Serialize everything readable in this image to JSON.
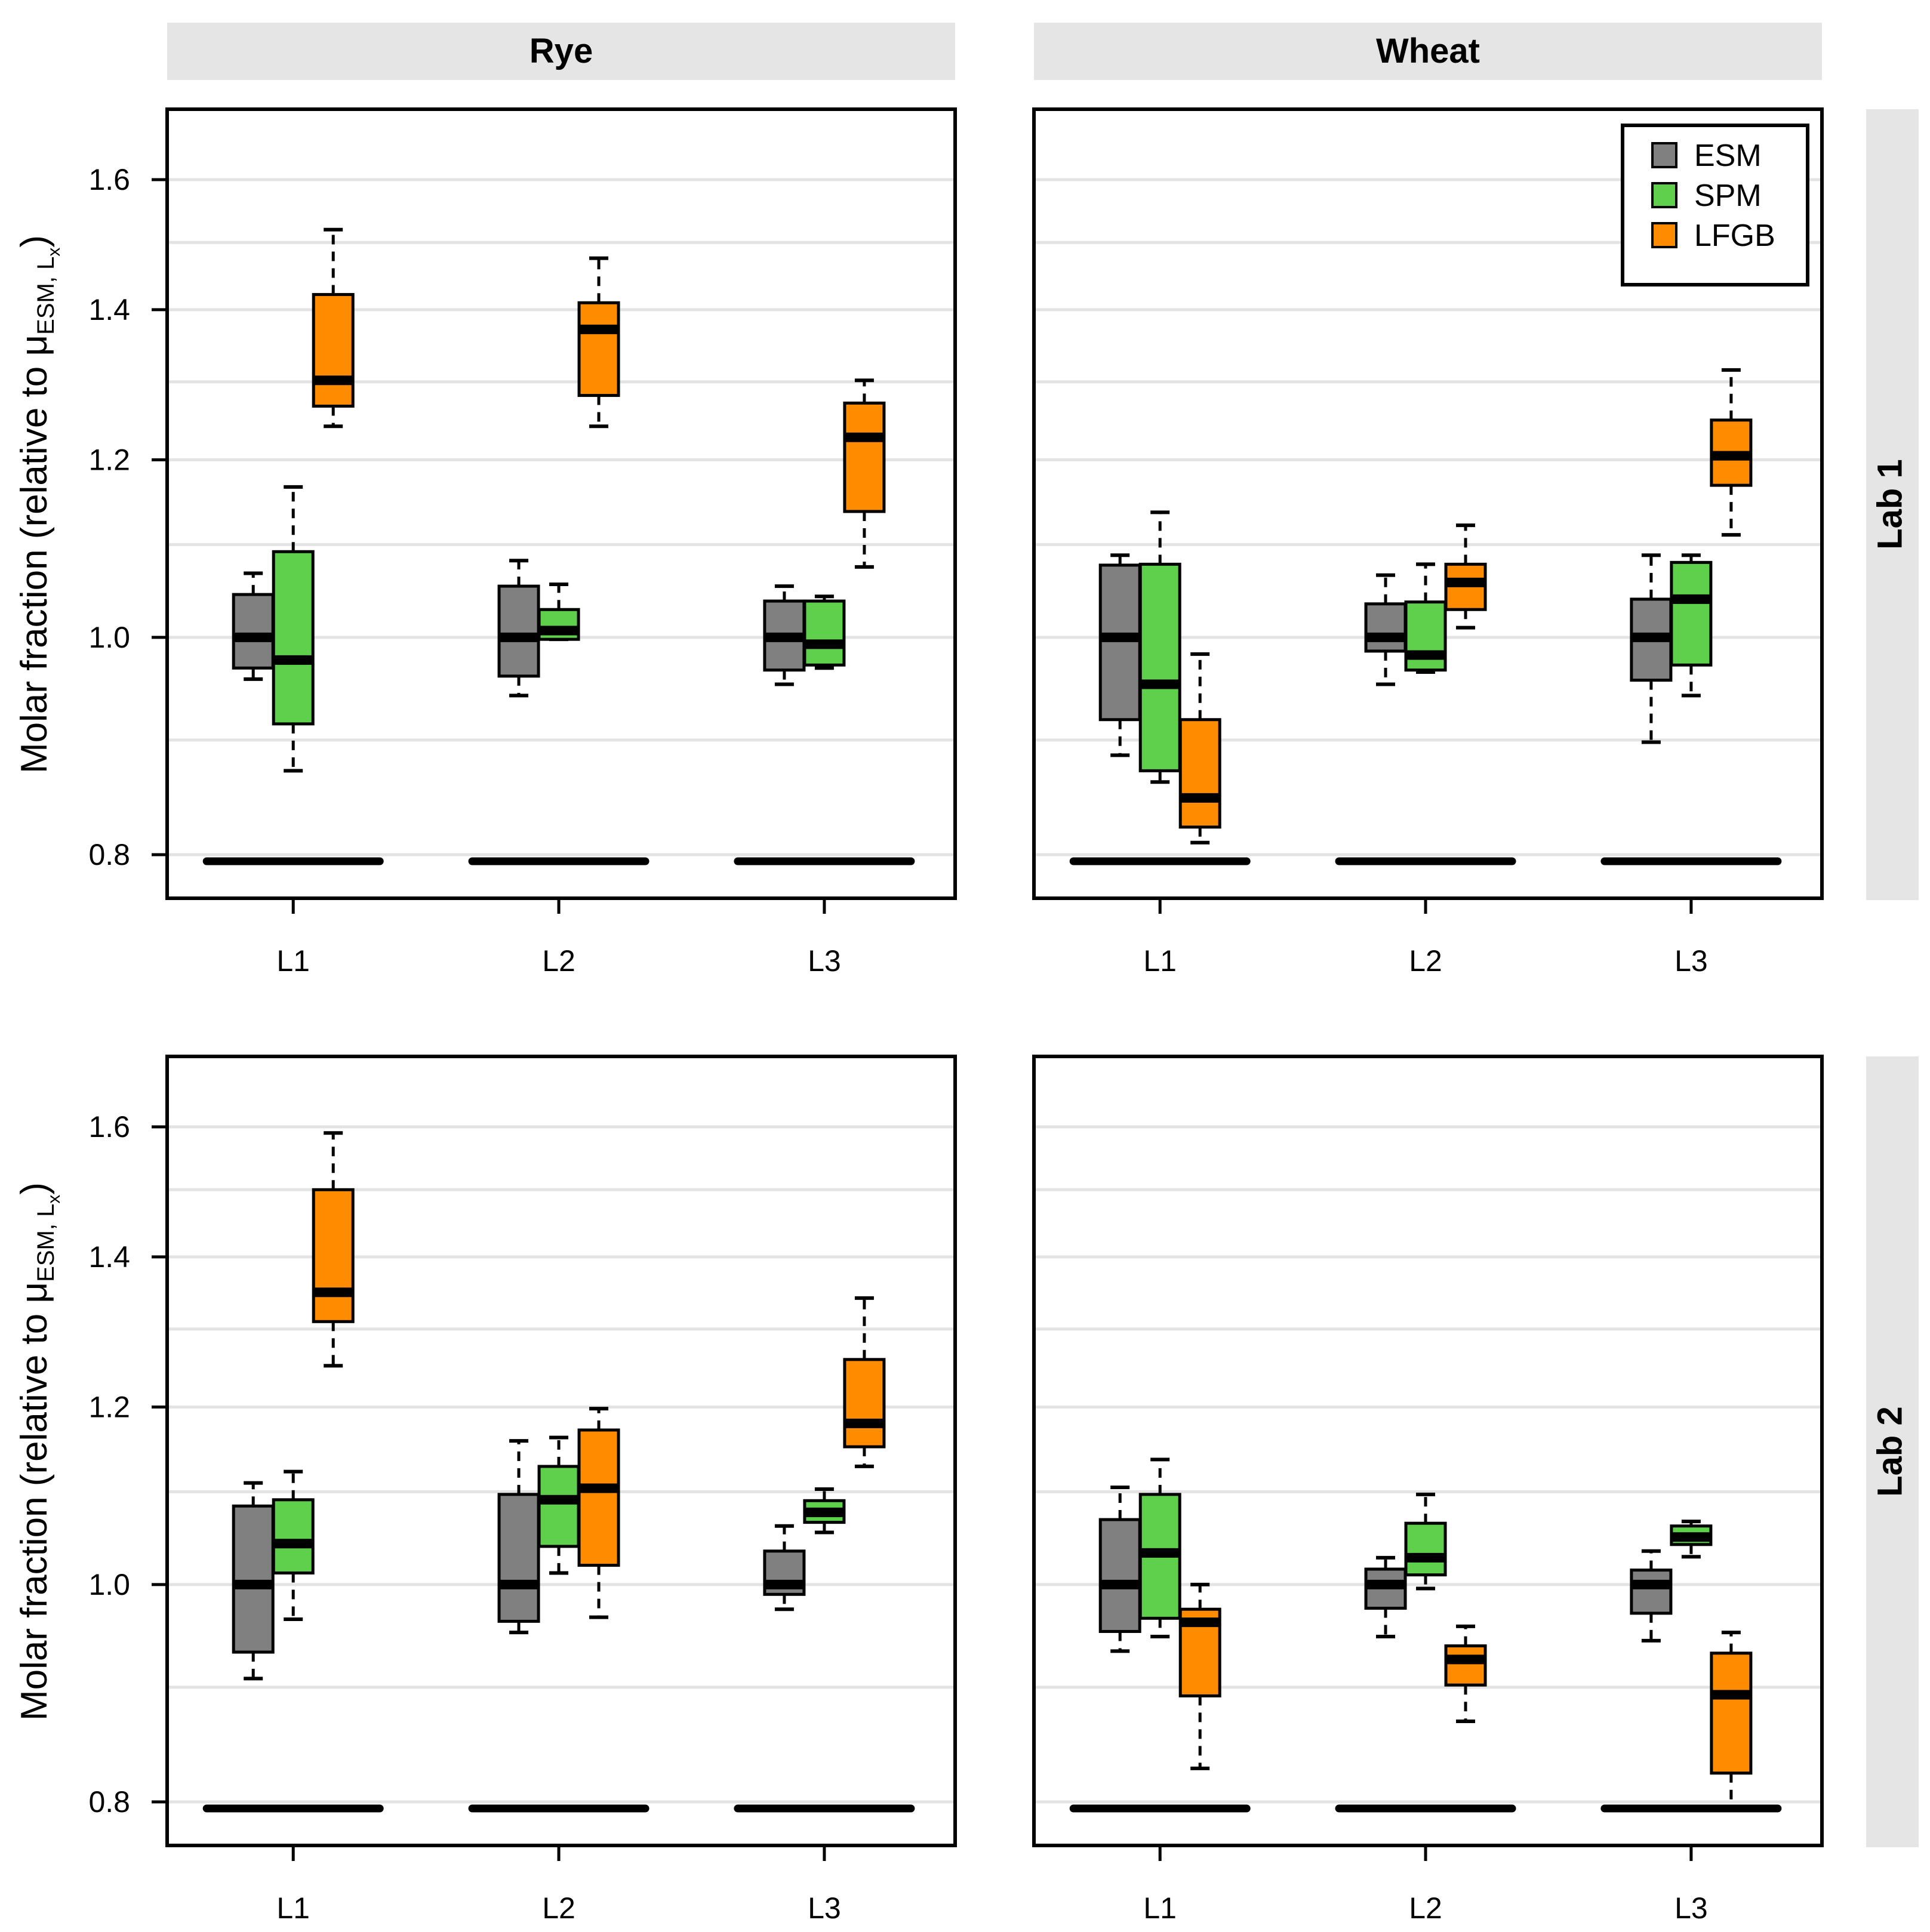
{
  "chart_data": {
    "type": "boxplot",
    "layout": "2x2 facet grid",
    "y_axis": {
      "label_prefix": "Molar fraction (relative to μ",
      "label_sub": "ESM, L",
      "label_subsub": "x",
      "label_suffix": ")",
      "ticks": [
        0.8,
        1.0,
        1.2,
        1.4,
        1.6
      ],
      "tick_labels": [
        "0.8",
        "1.0",
        "1.2",
        "1.4",
        "1.6"
      ],
      "minor_gridlines": [
        0.9,
        1.1,
        1.3,
        1.5
      ],
      "scale": "log",
      "ylim": [
        0.765,
        1.72
      ]
    },
    "x_axis": {
      "categories": [
        "L1",
        "L2",
        "L3"
      ]
    },
    "columns": [
      "Rye",
      "Wheat"
    ],
    "rows": [
      "Lab 1",
      "Lab 2"
    ],
    "legend": {
      "position": "top-right",
      "items": [
        {
          "name": "ESM",
          "color": "#808080"
        },
        {
          "name": "SPM",
          "color": "#5fd04c"
        },
        {
          "name": "LFGB",
          "color": "#ff8c00"
        }
      ]
    },
    "panels": [
      {
        "grain": "Rye",
        "lab": "Lab 1",
        "groups": [
          {
            "category": "L1",
            "boxes": [
              {
                "series": "ESM",
                "whisker_low": 0.958,
                "q1": 0.969,
                "median": 1.0,
                "q3": 1.045,
                "whisker_high": 1.068
              },
              {
                "series": "SPM",
                "whisker_low": 0.872,
                "q1": 0.915,
                "median": 0.977,
                "q3": 1.092,
                "whisker_high": 1.167
              },
              {
                "series": "LFGB",
                "whisker_low": 1.242,
                "q1": 1.268,
                "median": 1.302,
                "q3": 1.422,
                "whisker_high": 1.52
              }
            ]
          },
          {
            "category": "L2",
            "boxes": [
              {
                "series": "ESM",
                "whisker_low": 0.942,
                "q1": 0.961,
                "median": 1.0,
                "q3": 1.054,
                "whisker_high": 1.082
              },
              {
                "series": "SPM",
                "whisker_low": 0.998,
                "q1": 0.998,
                "median": 1.007,
                "q3": 1.029,
                "whisker_high": 1.056
              },
              {
                "series": "LFGB",
                "whisker_low": 1.242,
                "q1": 1.282,
                "median": 1.372,
                "q3": 1.41,
                "whisker_high": 1.476
              }
            ]
          },
          {
            "category": "L3",
            "boxes": [
              {
                "series": "ESM",
                "whisker_low": 0.953,
                "q1": 0.967,
                "median": 1.0,
                "q3": 1.038,
                "whisker_high": 1.054
              },
              {
                "series": "SPM",
                "whisker_low": 0.969,
                "q1": 0.972,
                "median": 0.993,
                "q3": 1.038,
                "whisker_high": 1.043
              },
              {
                "series": "LFGB",
                "whisker_low": 1.075,
                "q1": 1.138,
                "median": 1.228,
                "q3": 1.272,
                "whisker_high": 1.302
              }
            ]
          }
        ]
      },
      {
        "grain": "Wheat",
        "lab": "Lab 1",
        "groups": [
          {
            "category": "L1",
            "boxes": [
              {
                "series": "ESM",
                "whisker_low": 0.886,
                "q1": 0.919,
                "median": 1.0,
                "q3": 1.077,
                "whisker_high": 1.088
              },
              {
                "series": "SPM",
                "whisker_low": 0.862,
                "q1": 0.872,
                "median": 0.953,
                "q3": 1.078,
                "whisker_high": 1.137
              },
              {
                "series": "LFGB",
                "whisker_low": 0.81,
                "q1": 0.823,
                "median": 0.848,
                "q3": 0.919,
                "whisker_high": 0.983
              }
            ]
          },
          {
            "category": "L2",
            "boxes": [
              {
                "series": "ESM",
                "whisker_low": 0.953,
                "q1": 0.986,
                "median": 1.0,
                "q3": 1.035,
                "whisker_high": 1.066
              },
              {
                "series": "SPM",
                "whisker_low": 0.965,
                "q1": 0.967,
                "median": 0.982,
                "q3": 1.037,
                "whisker_high": 1.078
              },
              {
                "series": "LFGB",
                "whisker_low": 1.01,
                "q1": 1.029,
                "median": 1.058,
                "q3": 1.078,
                "whisker_high": 1.122
              }
            ]
          },
          {
            "category": "L3",
            "boxes": [
              {
                "series": "ESM",
                "whisker_low": 0.898,
                "q1": 0.957,
                "median": 1.0,
                "q3": 1.04,
                "whisker_high": 1.088
              },
              {
                "series": "SPM",
                "whisker_low": 0.942,
                "q1": 0.972,
                "median": 1.04,
                "q3": 1.08,
                "whisker_high": 1.088
              },
              {
                "series": "LFGB",
                "whisker_low": 1.111,
                "q1": 1.169,
                "median": 1.205,
                "q3": 1.25,
                "whisker_high": 1.316
              }
            ]
          }
        ]
      },
      {
        "grain": "Rye",
        "lab": "Lab 2",
        "groups": [
          {
            "category": "L1",
            "boxes": [
              {
                "series": "ESM",
                "whisker_low": 0.908,
                "q1": 0.933,
                "median": 1.0,
                "q3": 1.084,
                "whisker_high": 1.11
              },
              {
                "series": "SPM",
                "whisker_low": 0.965,
                "q1": 1.012,
                "median": 1.043,
                "q3": 1.091,
                "whisker_high": 1.123
              },
              {
                "series": "LFGB",
                "whisker_low": 1.252,
                "q1": 1.31,
                "median": 1.35,
                "q3": 1.5,
                "whisker_high": 1.59
              }
            ]
          },
          {
            "category": "L2",
            "boxes": [
              {
                "series": "ESM",
                "whisker_low": 0.952,
                "q1": 0.963,
                "median": 1.0,
                "q3": 1.097,
                "whisker_high": 1.159
              },
              {
                "series": "SPM",
                "whisker_low": 1.012,
                "q1": 1.04,
                "median": 1.091,
                "q3": 1.129,
                "whisker_high": 1.163
              },
              {
                "series": "LFGB",
                "whisker_low": 0.967,
                "q1": 1.02,
                "median": 1.104,
                "q3": 1.172,
                "whisker_high": 1.198
              }
            ]
          },
          {
            "category": "L3",
            "boxes": [
              {
                "series": "ESM",
                "whisker_low": 0.975,
                "q1": 0.99,
                "median": 1.0,
                "q3": 1.035,
                "whisker_high": 1.062
              },
              {
                "series": "SPM",
                "whisker_low": 1.055,
                "q1": 1.066,
                "median": 1.077,
                "q3": 1.09,
                "whisker_high": 1.103
              },
              {
                "series": "LFGB",
                "whisker_low": 1.129,
                "q1": 1.152,
                "median": 1.18,
                "q3": 1.26,
                "whisker_high": 1.342
              }
            ]
          }
        ]
      },
      {
        "grain": "Wheat",
        "lab": "Lab 2",
        "groups": [
          {
            "category": "L1",
            "boxes": [
              {
                "series": "ESM",
                "whisker_low": 0.934,
                "q1": 0.953,
                "median": 1.0,
                "q3": 1.069,
                "whisker_high": 1.105
              },
              {
                "series": "SPM",
                "whisker_low": 0.948,
                "q1": 0.966,
                "median": 1.033,
                "q3": 1.097,
                "whisker_high": 1.137
              },
              {
                "series": "LFGB",
                "whisker_low": 0.828,
                "q1": 0.892,
                "median": 0.962,
                "q3": 0.975,
                "whisker_high": 1.0
              }
            ]
          },
          {
            "category": "L2",
            "boxes": [
              {
                "series": "ESM",
                "whisker_low": 0.948,
                "q1": 0.976,
                "median": 1.0,
                "q3": 1.016,
                "whisker_high": 1.028
              },
              {
                "series": "SPM",
                "whisker_low": 0.996,
                "q1": 1.01,
                "median": 1.028,
                "q3": 1.065,
                "whisker_high": 1.097
              },
              {
                "series": "LFGB",
                "whisker_low": 0.869,
                "q1": 0.902,
                "median": 0.926,
                "q3": 0.939,
                "whisker_high": 0.958
              }
            ]
          },
          {
            "category": "L3",
            "boxes": [
              {
                "series": "ESM",
                "whisker_low": 0.944,
                "q1": 0.971,
                "median": 1.0,
                "q3": 1.015,
                "whisker_high": 1.035
              },
              {
                "series": "SPM",
                "whisker_low": 1.029,
                "q1": 1.042,
                "median": 1.05,
                "q3": 1.062,
                "whisker_high": 1.067
              },
              {
                "series": "LFGB",
                "whisker_low": 0.794,
                "q1": 0.824,
                "median": 0.893,
                "q3": 0.932,
                "whisker_high": 0.952
              }
            ]
          }
        ]
      }
    ]
  }
}
